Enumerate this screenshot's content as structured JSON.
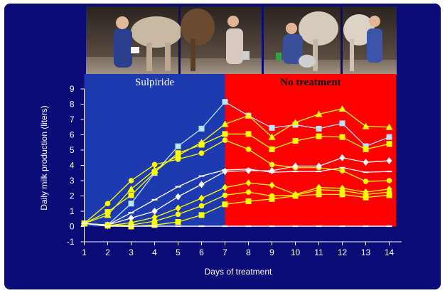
{
  "chart_data": {
    "type": "line",
    "title": "",
    "xlabel": "Days of treatment",
    "ylabel": "Daily milk production (liters)",
    "x": [
      1,
      2,
      3,
      4,
      5,
      6,
      7,
      8,
      9,
      10,
      11,
      12,
      13,
      14
    ],
    "xlim": [
      1,
      14
    ],
    "ylim": [
      -1,
      9
    ],
    "yticks": [
      -1,
      0,
      1,
      2,
      3,
      4,
      5,
      6,
      7,
      8,
      9
    ],
    "grid": false,
    "regions": [
      {
        "label": "Sulpiride",
        "from": 1,
        "to": 7,
        "color": "#1e3ab0",
        "label_color": "#ffffff"
      },
      {
        "label": "No treatment",
        "from": 7,
        "to": 14,
        "color": "#ff0000",
        "label_color": "#000000"
      }
    ],
    "series": [
      {
        "color": "#b8e4ff",
        "marker": "square",
        "values": [
          0.2,
          0.1,
          1.5,
          3.5,
          5.25,
          6.4,
          8.15,
          7.25,
          6.45,
          6.65,
          6.4,
          6.75,
          5.25,
          5.85
        ]
      },
      {
        "color": "#ffff00",
        "marker": "triangle",
        "values": [
          0.2,
          0.75,
          2.45,
          3.7,
          4.65,
          5.5,
          6.7,
          7.25,
          5.85,
          6.8,
          7.35,
          7.7,
          6.55,
          6.5
        ]
      },
      {
        "color": "#ffff00",
        "marker": "square",
        "values": [
          0.2,
          0.95,
          2.05,
          3.55,
          4.8,
          5.35,
          6.05,
          6.05,
          5.05,
          5.6,
          5.9,
          5.85,
          5.05,
          5.4
        ]
      },
      {
        "color": "#ffff00",
        "marker": "circle",
        "values": [
          0.2,
          1.5,
          3.0,
          4.05,
          4.4,
          4.8,
          5.65,
          5.05,
          4.05,
          3.85,
          3.85,
          3.65,
          2.95,
          3.0
        ]
      },
      {
        "color": "#ffffff",
        "marker": "diamond",
        "values": [
          0.2,
          0.1,
          0.55,
          1.0,
          1.95,
          2.75,
          3.6,
          3.65,
          3.65,
          3.95,
          3.95,
          4.5,
          4.2,
          4.3
        ]
      },
      {
        "color": "#ffffff",
        "marker": "dash",
        "values": [
          0.2,
          0.1,
          0.9,
          1.75,
          2.6,
          3.3,
          3.7,
          3.75,
          3.55,
          3.6,
          3.6,
          3.85,
          3.55,
          3.6
        ]
      },
      {
        "color": "#ffff00",
        "marker": "diamond",
        "values": [
          0.2,
          0.05,
          0.25,
          0.6,
          1.2,
          1.85,
          2.55,
          2.85,
          2.7,
          2.1,
          2.55,
          2.5,
          2.25,
          2.45
        ]
      },
      {
        "color": "#ffff00",
        "marker": "circle",
        "values": [
          0.2,
          0.05,
          0.1,
          0.35,
          0.8,
          1.35,
          2.05,
          2.25,
          2.0,
          2.05,
          2.4,
          2.35,
          2.1,
          2.25
        ]
      },
      {
        "color": "#ffff00",
        "marker": "square",
        "values": [
          0.2,
          0.05,
          0.0,
          0.1,
          0.3,
          0.75,
          1.45,
          1.65,
          1.8,
          2.0,
          2.1,
          2.1,
          1.9,
          2.05
        ]
      },
      {
        "color": "#ffffff",
        "marker": "dash",
        "values": [
          0.2,
          0.02,
          0.02,
          0.02,
          0.02,
          0.02,
          0.02,
          0.02,
          0.02,
          0.02,
          0.02,
          0.02,
          0.02,
          0.02
        ]
      }
    ]
  }
}
